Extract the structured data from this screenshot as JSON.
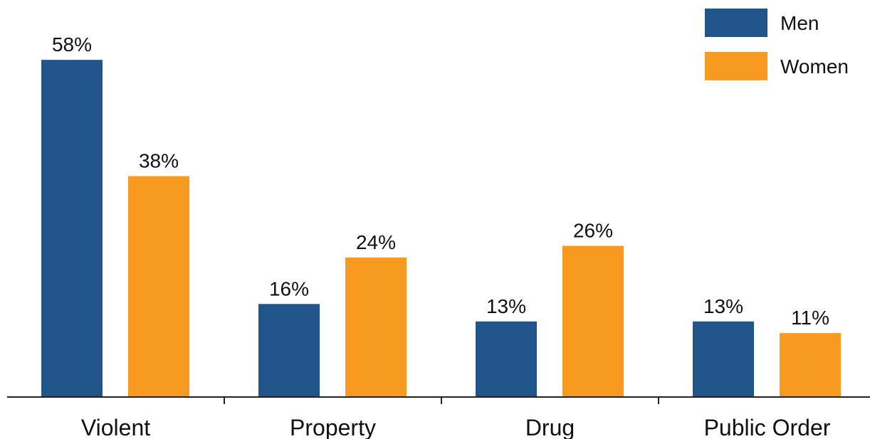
{
  "chart_data": {
    "type": "bar",
    "title": "",
    "xlabel": "",
    "ylabel": "",
    "categories": [
      "Violent",
      "Property",
      "Drug",
      "Public Order"
    ],
    "series": [
      {
        "name": "Men",
        "color": "#20548b",
        "values": [
          58,
          16,
          13,
          13
        ],
        "labels": [
          "58%",
          "16%",
          "13%",
          "13%"
        ]
      },
      {
        "name": "Women",
        "color": "#f79a1f",
        "values": [
          38,
          24,
          26,
          11
        ],
        "labels": [
          "38%",
          "24%",
          "26%",
          "11%"
        ]
      }
    ],
    "ylim": [
      0,
      58
    ],
    "unit": "%",
    "grid": false,
    "legend_position": "top-right"
  }
}
